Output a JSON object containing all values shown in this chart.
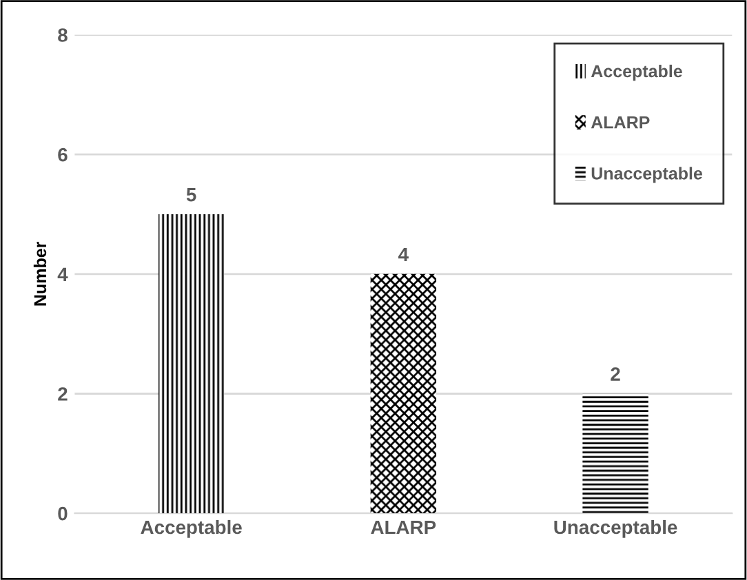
{
  "chart_data": {
    "type": "bar",
    "ylabel": "Number",
    "categories": [
      "Acceptable",
      "ALARP",
      "Unacceptable"
    ],
    "series": [
      {
        "name": "Acceptable",
        "color": "#000000",
        "values": [
          5,
          null,
          null
        ]
      },
      {
        "name": "ALARP",
        "color": "#000000",
        "values": [
          null,
          4,
          null
        ]
      },
      {
        "name": "Unacceptable",
        "color": "#000000",
        "values": [
          null,
          null,
          2
        ]
      }
    ],
    "ylim": [
      0,
      8
    ],
    "yticks": [
      0,
      2,
      4,
      6,
      8
    ],
    "grid": "y",
    "legend": "top right",
    "data_labels": true
  }
}
